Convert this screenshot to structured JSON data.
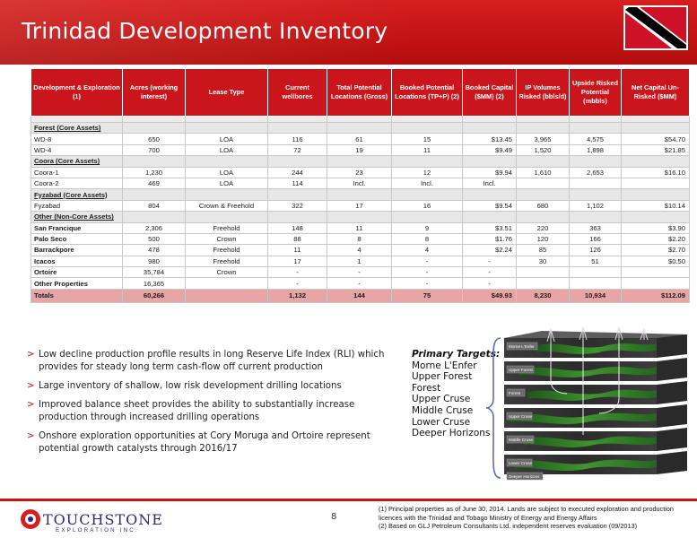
{
  "header": {
    "title": "Trinidad Development Inventory"
  },
  "colors": {
    "brand_red": "#c41414",
    "header_red": "#c9151b",
    "total_row": "#e8a5a5",
    "logo_blue": "#2e2a7a"
  },
  "table": {
    "columns": [
      "Development & Exploration (1)",
      "Acres (working interest)",
      "Lease Type",
      "Current wellbores",
      "Total Potential Locations (Gross)",
      "Booked Potential Locations (TP+P) (2)",
      "Booked Capital ($MM) (2)",
      "IP Volumes Risked (bbls/d)",
      "Upside Risked Potential (mbbls)",
      "Net Capital Un-Risked ($MM)"
    ],
    "groups": {
      "forest": "Forest (Core Assets)",
      "coora": "Coora (Core Assets)",
      "fyzabad": "Fyzabad (Core Assets)",
      "other": "Other (Non-Core Assets)"
    },
    "rows": {
      "wd8": [
        "WD-8",
        "650",
        "LOA",
        "116",
        "61",
        "15",
        "$13.45",
        "3,965",
        "4,575",
        "$54.70"
      ],
      "wd4": [
        "WD-4",
        "700",
        "LOA",
        "72",
        "19",
        "11",
        "$9.49",
        "1,520",
        "1,898",
        "$21.85"
      ],
      "coora1": [
        "Coora-1",
        "1,230",
        "LOA",
        "244",
        "23",
        "12",
        "$9.94",
        "1,610",
        "2,653",
        "$16.10"
      ],
      "coora2": [
        "Coora-2",
        "469",
        "LOA",
        "114",
        "Incl.",
        "Incl.",
        "Incl.",
        "",
        "",
        ""
      ],
      "fyzabad": [
        "Fyzabad",
        "804",
        "Crown & Freehold",
        "322",
        "17",
        "16",
        "$9.54",
        "680",
        "1,102",
        "$10.14"
      ],
      "sanfrancique": [
        "San Francique",
        "2,306",
        "Freehold",
        "148",
        "11",
        "9",
        "$3.51",
        "220",
        "363",
        "$3.90"
      ],
      "paloseco": [
        "Palo Seco",
        "500",
        "Crown",
        "88",
        "8",
        "8",
        "$1.76",
        "120",
        "166",
        "$2.20"
      ],
      "barrackpore": [
        "Barrackpore",
        "478",
        "Freehold",
        "11",
        "4",
        "4",
        "$2.24",
        "85",
        "126",
        "$2.70"
      ],
      "icacos": [
        "Icacos",
        "980",
        "Freehold",
        "17",
        "1",
        "-",
        "-",
        "30",
        "51",
        "$0.50"
      ],
      "ortoire": [
        "Ortoire",
        "35,784",
        "Crown",
        "-",
        "-",
        "-",
        "-",
        "",
        "",
        ""
      ],
      "otherprops": [
        "Other Properties",
        "16,365",
        "",
        "-",
        "-",
        "-",
        "-",
        "",
        "",
        ""
      ],
      "totals": [
        "Totals",
        "60,266",
        "",
        "1,132",
        "144",
        "75",
        "$49.93",
        "8,230",
        "10,934",
        "$112.09"
      ]
    }
  },
  "bullets": [
    "Low decline production profile results in long Reserve Life Index (RLI) which provides for steady long term cash-flow off current production",
    "Large inventory of shallow, low risk development drilling locations",
    "Improved balance sheet provides the ability to substantially increase production through increased drilling operations",
    "Onshore exploration opportunities at Cory Moruga and Ortoire represent potential growth catalysts through 2016/17"
  ],
  "bullet_marker": ">",
  "targets": {
    "heading": "Primary Targets:",
    "items": [
      "Morne L'Enfer",
      "Upper Forest",
      "Forest",
      "Upper Cruse",
      "Middle Cruse",
      "Lower Cruse",
      "Deeper Horizons"
    ]
  },
  "diagram_labels": [
    "Morne L'Enfer",
    "Upper Forest",
    "Forest",
    "Upper Cruse",
    "Middle Cruse",
    "Lower Cruse",
    "Deeper Horizons"
  ],
  "footer": {
    "page_number": "8",
    "footnote_1": "(1)  Principal properties as of June 30, 2014.  Lands are subject to executed exploration and production licences with the Trinidad and Tobago Ministry of Energy and Energy Affairs",
    "footnote_2": "(2) Based on GLJ Petroleum Consultants Ltd. independent reserves evaluation (09/2013)",
    "logo_name": "TOUCHSTONE",
    "logo_sub": "EXPLORATION INC."
  }
}
